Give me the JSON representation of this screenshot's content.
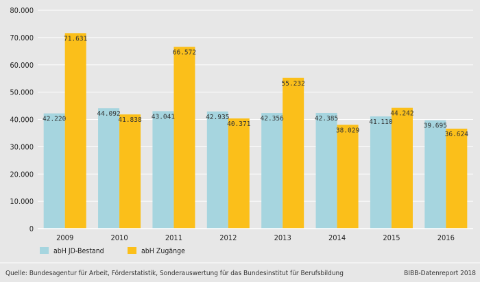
{
  "chart_data": {
    "type": "bar",
    "categories": [
      "2009",
      "2010",
      "2011",
      "2012",
      "2013",
      "2014",
      "2015",
      "2016"
    ],
    "series": [
      {
        "name": "abH JD-Bestand",
        "color": "#a6d5df",
        "values": [
          42220,
          44092,
          43041,
          42935,
          42356,
          42385,
          41110,
          39695
        ],
        "labels": [
          "42.220",
          "44.092",
          "43.041",
          "42.935",
          "42.356",
          "42.385",
          "41.110",
          "39.695"
        ]
      },
      {
        "name": "abH Zugänge",
        "color": "#fbbf1a",
        "values": [
          71631,
          41838,
          66572,
          40371,
          55232,
          38029,
          44242,
          36624
        ],
        "labels": [
          "71.631",
          "41.838",
          "66.572",
          "40.371",
          "55.232",
          "38.029",
          "44.242",
          "36.624"
        ]
      }
    ],
    "ylim": [
      0,
      80000
    ],
    "yticks": [
      0,
      10000,
      20000,
      30000,
      40000,
      50000,
      60000,
      70000,
      80000
    ],
    "ytick_labels": [
      "0",
      "10.000",
      "20.000",
      "30.000",
      "40.000",
      "50.000",
      "60.000",
      "70.000",
      "80.000"
    ],
    "grid": true,
    "legend_position": "bottom-left"
  },
  "footer": {
    "source": "Quelle: Bundesagentur für Arbeit, Förderstatistik, Sonderauswertung für das Bundesinstitut für Berufsbildung",
    "credit": "BIBB-Datenreport 2018"
  }
}
